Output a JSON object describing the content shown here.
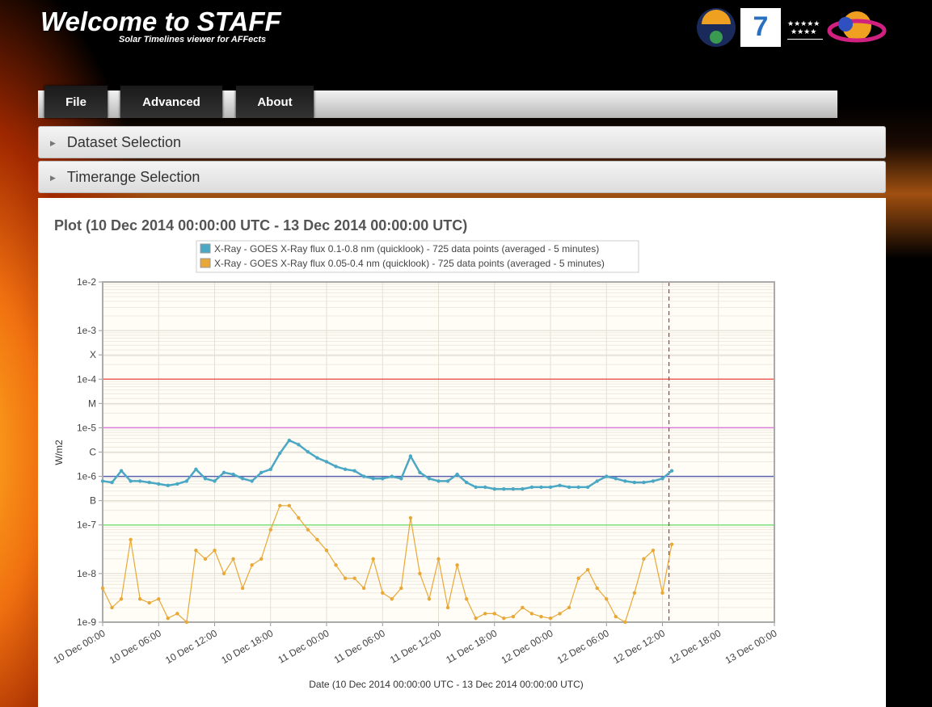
{
  "header": {
    "title": "Welcome to STAFF",
    "subtitle": "Solar Timelines viewer for AFFects"
  },
  "menu": [
    "File",
    "Advanced",
    "About"
  ],
  "panels": [
    "Dataset Selection",
    "Timerange Selection"
  ],
  "chart_data": {
    "type": "line",
    "title": "Plot (10 Dec 2014 00:00:00 UTC - 13 Dec 2014 00:00:00 UTC)",
    "x_label": "Date (10 Dec 2014 00:00:00 UTC - 13 Dec 2014 00:00:00 UTC)",
    "y_label": "W/m2",
    "log_y": true,
    "grid": true,
    "legend": "top",
    "xlim": [
      0,
      72
    ],
    "xticks": [
      {
        "value": 0,
        "label": "10 Dec 00:00"
      },
      {
        "value": 6,
        "label": "10 Dec 06:00"
      },
      {
        "value": 12,
        "label": "10 Dec 12:00"
      },
      {
        "value": 18,
        "label": "10 Dec 18:00"
      },
      {
        "value": 24,
        "label": "11 Dec 00:00"
      },
      {
        "value": 30,
        "label": "11 Dec 06:00"
      },
      {
        "value": 36,
        "label": "11 Dec 12:00"
      },
      {
        "value": 42,
        "label": "11 Dec 18:00"
      },
      {
        "value": 48,
        "label": "12 Dec 00:00"
      },
      {
        "value": 54,
        "label": "12 Dec 06:00"
      },
      {
        "value": 60,
        "label": "12 Dec 12:00"
      },
      {
        "value": 66,
        "label": "12 Dec 18:00"
      },
      {
        "value": 72,
        "label": "13 Dec 00:00"
      }
    ],
    "ylim": [
      1e-09,
      0.01
    ],
    "yticks": [
      {
        "value": 0.01,
        "label": "1e-2"
      },
      {
        "value": 0.001,
        "label": "1e-3"
      },
      {
        "value": 0.0003162,
        "label": "X"
      },
      {
        "value": 0.0001,
        "label": "1e-4"
      },
      {
        "value": 3.162e-05,
        "label": "M"
      },
      {
        "value": 1e-05,
        "label": "1e-5"
      },
      {
        "value": 3.162e-06,
        "label": "C"
      },
      {
        "value": 1e-06,
        "label": "1e-6"
      },
      {
        "value": 3.162e-07,
        "label": "B"
      },
      {
        "value": 1e-07,
        "label": "1e-7"
      },
      {
        "value": 1e-08,
        "label": "1e-8"
      },
      {
        "value": 1e-09,
        "label": "1e-9"
      }
    ],
    "thresholds": [
      {
        "value": 0.0001,
        "color": "#e8625a"
      },
      {
        "value": 1e-05,
        "color": "#d77fd9"
      },
      {
        "value": 1e-06,
        "color": "#5a62b0"
      },
      {
        "value": 1e-07,
        "color": "#7ee07a"
      }
    ],
    "marker_line": {
      "x": 60.7,
      "color": "#c0303a"
    },
    "x": [
      0,
      1,
      2,
      3,
      4,
      5,
      6,
      7,
      8,
      9,
      10,
      11,
      12,
      13,
      14,
      15,
      16,
      17,
      18,
      19,
      20,
      21,
      22,
      23,
      24,
      25,
      26,
      27,
      28,
      29,
      30,
      31,
      32,
      33,
      34,
      35,
      36,
      37,
      38,
      39,
      40,
      41,
      42,
      43,
      44,
      45,
      46,
      47,
      48,
      49,
      50,
      51,
      52,
      53,
      54,
      55,
      56,
      57,
      58,
      59,
      60,
      61
    ],
    "series": [
      {
        "name": "X-Ray - GOES X-Ray flux 0.1-0.8 nm (quicklook) - 725 data points (averaged - 5 minutes)",
        "color": "#4aa8c4",
        "values": [
          8e-07,
          7.5e-07,
          1.3e-06,
          8e-07,
          8e-07,
          7.5e-07,
          7e-07,
          6.5e-07,
          7e-07,
          8e-07,
          1.4e-06,
          9e-07,
          8e-07,
          1.2e-06,
          1.1e-06,
          9e-07,
          8e-07,
          1.2e-06,
          1.4e-06,
          3e-06,
          5.5e-06,
          4.5e-06,
          3.2e-06,
          2.4e-06,
          2e-06,
          1.6e-06,
          1.4e-06,
          1.3e-06,
          1e-06,
          9e-07,
          9e-07,
          1e-06,
          9e-07,
          2.6e-06,
          1.2e-06,
          9e-07,
          8e-07,
          8e-07,
          1.1e-06,
          7.5e-07,
          6e-07,
          6e-07,
          5.5e-07,
          5.5e-07,
          5.5e-07,
          5.5e-07,
          6e-07,
          6e-07,
          6e-07,
          6.5e-07,
          6e-07,
          6e-07,
          6e-07,
          8e-07,
          1e-06,
          9e-07,
          8e-07,
          7.5e-07,
          7.5e-07,
          8e-07,
          9e-07,
          1.3e-06
        ]
      },
      {
        "name": "X-Ray - GOES X-Ray flux 0.05-0.4 nm (quicklook) - 725 data points (averaged - 5 minutes)",
        "color": "#e8a838",
        "values": [
          5e-09,
          2e-09,
          3e-09,
          5e-08,
          3e-09,
          2.5e-09,
          3e-09,
          1.2e-09,
          1.5e-09,
          1e-09,
          3e-08,
          2e-08,
          3e-08,
          1e-08,
          2e-08,
          5e-09,
          1.5e-08,
          2e-08,
          8e-08,
          2.5e-07,
          2.5e-07,
          1.4e-07,
          8e-08,
          5e-08,
          3e-08,
          1.5e-08,
          8e-09,
          8e-09,
          5e-09,
          2e-08,
          4e-09,
          3e-09,
          5e-09,
          1.4e-07,
          1e-08,
          3e-09,
          2e-08,
          2e-09,
          1.5e-08,
          3e-09,
          1.2e-09,
          1.5e-09,
          1.5e-09,
          1.2e-09,
          1.3e-09,
          2e-09,
          1.5e-09,
          1.3e-09,
          1.2e-09,
          1.5e-09,
          2e-09,
          8e-09,
          1.2e-08,
          5e-09,
          3e-09,
          1.3e-09,
          1e-09,
          4e-09,
          2e-08,
          3e-08,
          4e-09,
          4e-08
        ]
      }
    ]
  }
}
